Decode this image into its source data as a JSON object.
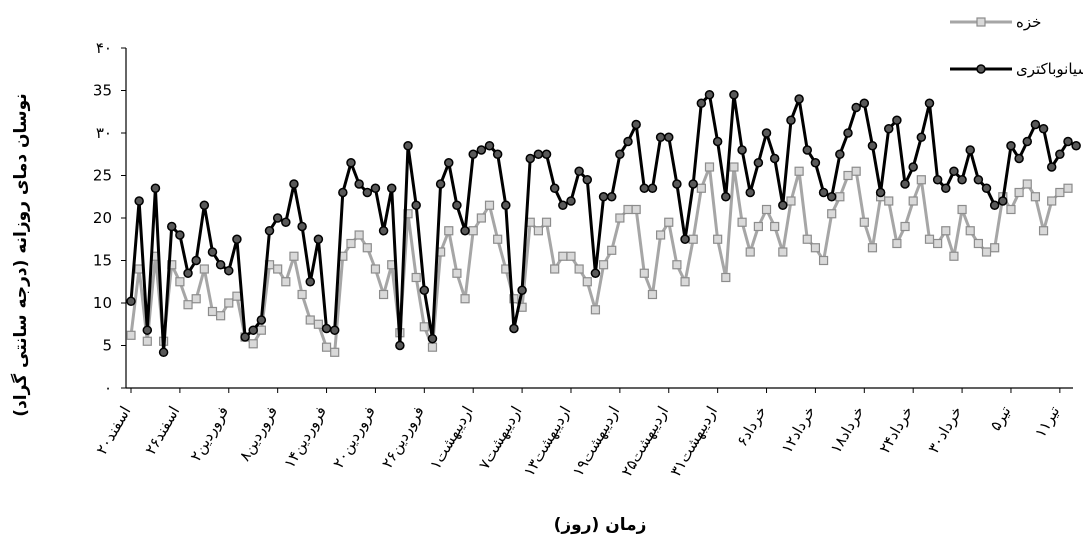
{
  "chart_data": {
    "type": "line",
    "xlabel": "زمان (روز)",
    "ylabel": "نوسان دمای روزانه (درجه سانتی گراد)",
    "ylim": [
      0,
      40
    ],
    "y_ticks": [
      0,
      5,
      10,
      15,
      20,
      25,
      30,
      35,
      40
    ],
    "y_tick_labels": [
      "۰",
      "5",
      "10",
      "15",
      "20",
      "25",
      "۳۰",
      "35",
      "۴۰"
    ],
    "x_tick_labels": [
      "۲۰اسفند",
      "۲۶اسفند",
      "۲فروردین",
      "۸فروردین",
      "۱۴فروردین",
      "۲۰فروردین",
      "۲۶فروردین",
      "۱اردیبهشت",
      "۷اردیبهشت",
      "۱۳اردیبهشت",
      "۱۹اردیبهشت",
      "۲۵اردیبهشت",
      "۳۱اردیبهشت",
      "۶خرداد",
      "۱۲خرداد",
      "۱۸خرداد",
      "۲۴خرداد",
      "۳۰خرداد",
      "۵تیر",
      "۱۱تیر"
    ],
    "legend_position": "top-right",
    "grid": false,
    "series": [
      {
        "name": "خزه",
        "color": "#a6a6a6",
        "marker": "square",
        "values": [
          6.2,
          14,
          5.5,
          15.5,
          5.5,
          14.5,
          12.5,
          9.8,
          10.5,
          14,
          9,
          8.5,
          10,
          10.8,
          6,
          5.2,
          6.8,
          14.5,
          14,
          12.5,
          15.5,
          11,
          8,
          7.5,
          4.8,
          4.2,
          15.5,
          17,
          18,
          16.5,
          14,
          11,
          14.5,
          6.5,
          20.5,
          13,
          7.2,
          4.8,
          16,
          18.5,
          13.5,
          10.5,
          18.5,
          20,
          21.5,
          17.5,
          14,
          10.5,
          9.5,
          19.5,
          18.5,
          19.5,
          14,
          15.5,
          15.5,
          14,
          12.5,
          9.2,
          14.5,
          16.2,
          20,
          21,
          21,
          13.5,
          11,
          18,
          19.5,
          14.5,
          12.5,
          17.5,
          23.5,
          26,
          17.5,
          13,
          26,
          19.5,
          16,
          19,
          21,
          19,
          16,
          22,
          25.5,
          17.5,
          16.5,
          15,
          20.5,
          22.5,
          25,
          25.5,
          19.5,
          16.5,
          22.5,
          22,
          17,
          19,
          22,
          24.5,
          17.5,
          17,
          18.5,
          15.5,
          21,
          18.5,
          17,
          16,
          16.5,
          22.5,
          21,
          23,
          24,
          22.5,
          18.5,
          22,
          23,
          23.5
        ]
      },
      {
        "name": "سیانوباکتری",
        "color": "#000000",
        "marker": "circle",
        "values": [
          10.2,
          22,
          6.8,
          23.5,
          4.2,
          19,
          18,
          13.5,
          15,
          21.5,
          16,
          14.5,
          13.8,
          17.5,
          6,
          6.8,
          8,
          18.5,
          20,
          19.5,
          24,
          19,
          12.5,
          17.5,
          7,
          6.8,
          23,
          26.5,
          24,
          23,
          23.5,
          18.5,
          23.5,
          5,
          28.5,
          21.5,
          11.5,
          5.8,
          24,
          26.5,
          21.5,
          18.5,
          27.5,
          28,
          28.5,
          27.5,
          21.5,
          7,
          11.5,
          27,
          27.5,
          27.5,
          23.5,
          21.5,
          22,
          25.5,
          24.5,
          13.5,
          22.5,
          22.5,
          27.5,
          29,
          31,
          23.5,
          23.5,
          29.5,
          29.5,
          24,
          17.5,
          24,
          33.5,
          34.5,
          29,
          22.5,
          34.5,
          28,
          23,
          26.5,
          30,
          27,
          21.5,
          31.5,
          34,
          28,
          26.5,
          23,
          22.5,
          27.5,
          30,
          33,
          33.5,
          28.5,
          23,
          30.5,
          31.5,
          24,
          26,
          29.5,
          33.5,
          24.5,
          23.5,
          25.5,
          24.5,
          28,
          24.5,
          23.5,
          21.5,
          22,
          28.5,
          27,
          29,
          31,
          30.5,
          26,
          27.5,
          29,
          28.5
        ]
      }
    ]
  }
}
